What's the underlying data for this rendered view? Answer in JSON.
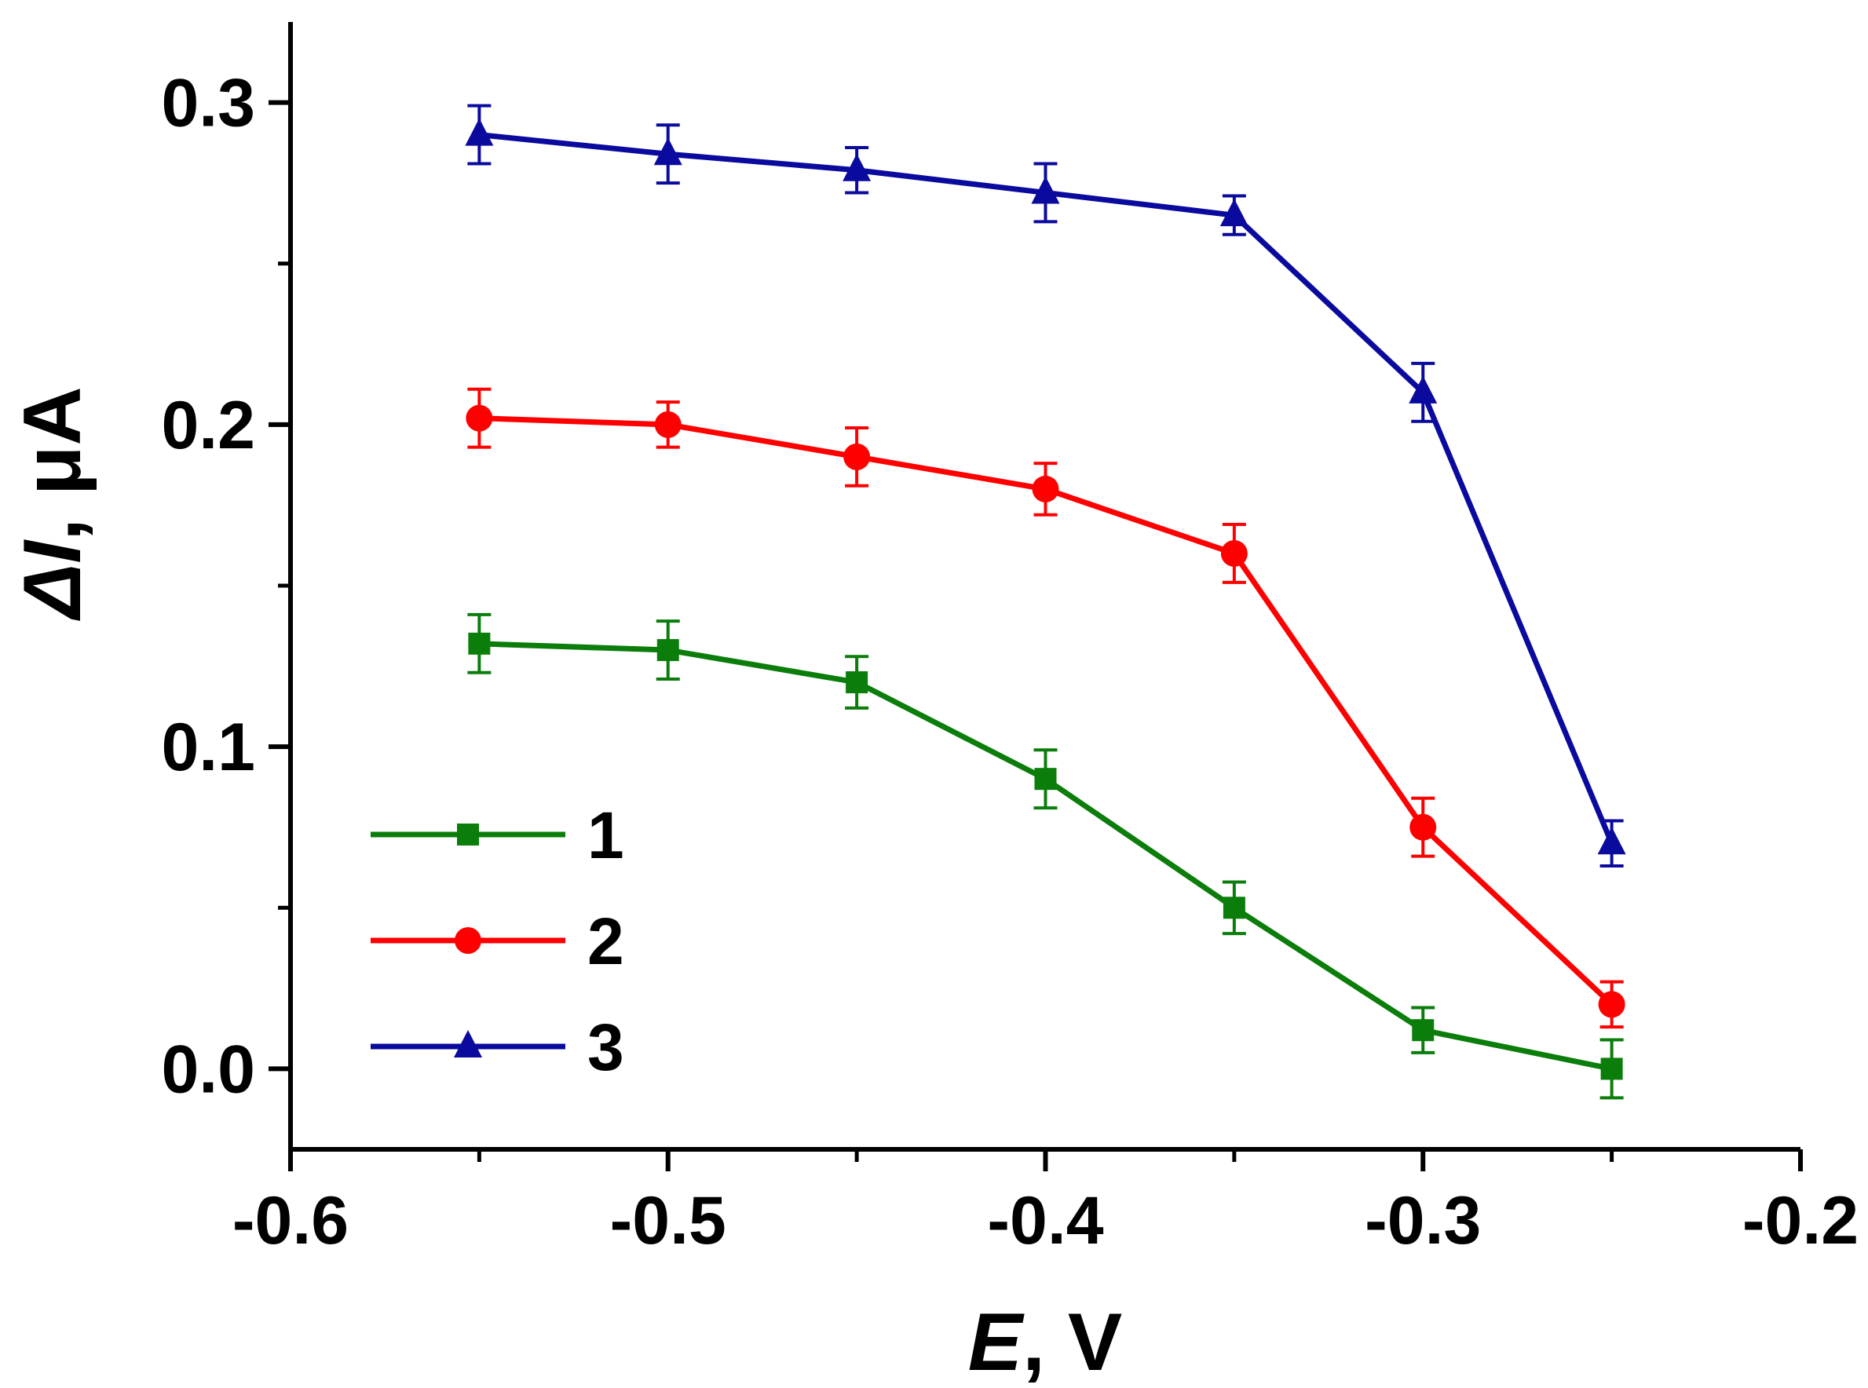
{
  "chart_data": {
    "type": "line",
    "title": "",
    "xlabel": {
      "var": "E",
      "unit": ", V"
    },
    "ylabel": {
      "var": "ΔI",
      "unit": ", μA"
    },
    "xlim": [
      -0.6,
      -0.2
    ],
    "ylim": [
      -0.025,
      0.325
    ],
    "x_ticks": [
      -0.6,
      -0.5,
      -0.4,
      -0.3,
      -0.2
    ],
    "x_tick_labels": [
      "-0.6",
      "-0.5",
      "-0.4",
      "-0.3",
      "-0.2"
    ],
    "x_minor_ticks": [
      -0.55,
      -0.45,
      -0.35,
      -0.25
    ],
    "y_ticks": [
      0.0,
      0.1,
      0.2,
      0.3
    ],
    "y_tick_labels": [
      "0.0",
      "0.1",
      "0.2",
      "0.3"
    ],
    "y_minor_ticks": [
      0.05,
      0.15,
      0.25
    ],
    "grid": false,
    "legend_position": "bottom-left",
    "x": [
      -0.55,
      -0.5,
      -0.45,
      -0.4,
      -0.35,
      -0.3,
      -0.25
    ],
    "series": [
      {
        "name": "1",
        "color": "#0b7d0b",
        "marker": "square",
        "values": [
          0.132,
          0.13,
          0.12,
          0.09,
          0.05,
          0.012,
          0.0
        ],
        "errors": [
          0.009,
          0.009,
          0.008,
          0.009,
          0.008,
          0.007,
          0.009
        ]
      },
      {
        "name": "2",
        "color": "#ff0000",
        "marker": "circle",
        "values": [
          0.202,
          0.2,
          0.19,
          0.18,
          0.16,
          0.075,
          0.02
        ],
        "errors": [
          0.009,
          0.007,
          0.009,
          0.008,
          0.009,
          0.009,
          0.007
        ]
      },
      {
        "name": "3",
        "color": "#0a0a9e",
        "marker": "triangle",
        "values": [
          0.29,
          0.284,
          0.279,
          0.272,
          0.265,
          0.21,
          0.07
        ],
        "errors": [
          0.009,
          0.009,
          0.007,
          0.009,
          0.006,
          0.009,
          0.007
        ]
      }
    ]
  }
}
